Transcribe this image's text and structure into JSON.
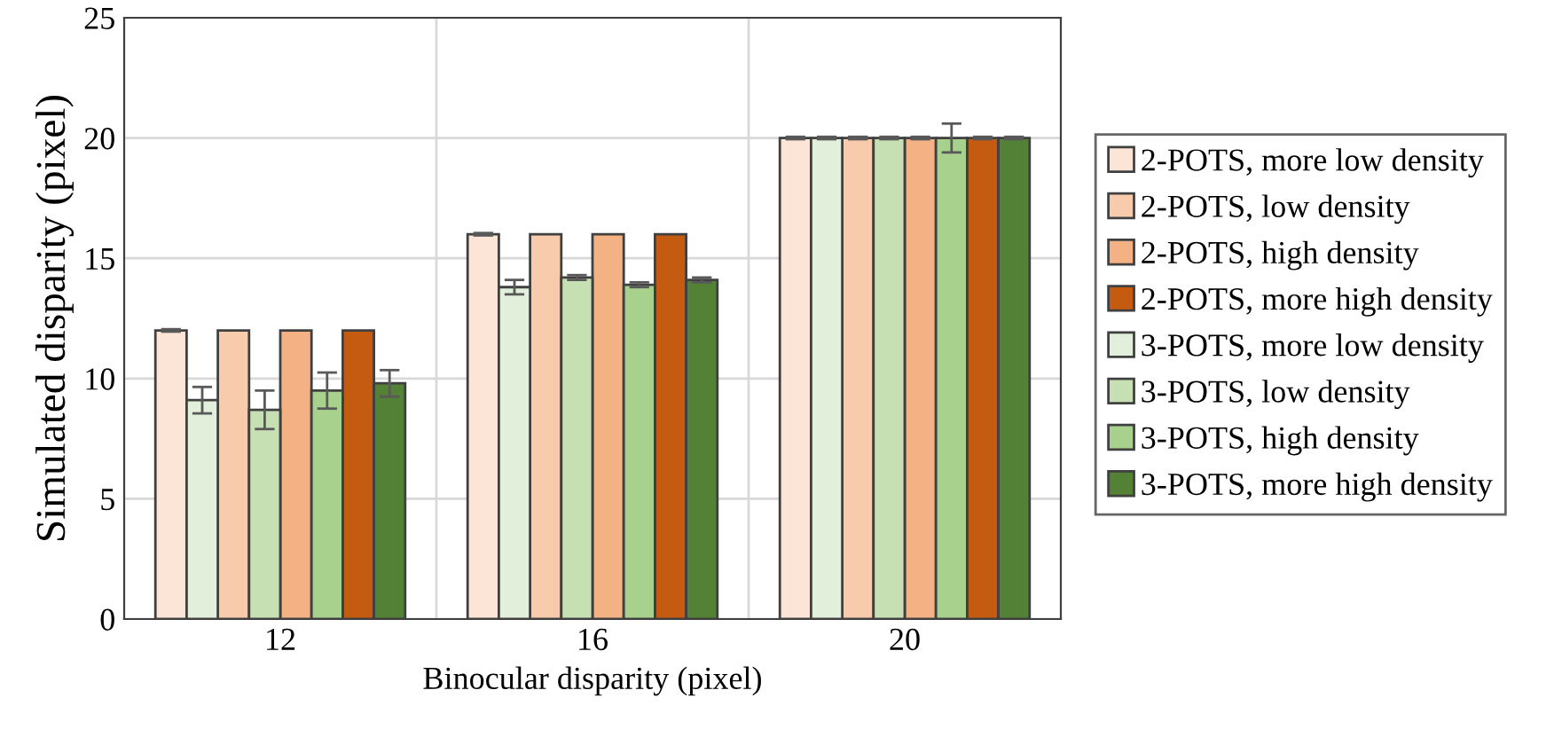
{
  "chart_data": {
    "type": "bar",
    "xlabel": "Binocular disparity (pixel)",
    "ylabel": "Simulated disparity (pixel)",
    "categories": [
      "12",
      "16",
      "20"
    ],
    "series": [
      {
        "name": "2-POTS, more low density",
        "color": "#fce4d6",
        "values": [
          12,
          16,
          20
        ],
        "errors": [
          0.05,
          0.05,
          0.05
        ]
      },
      {
        "name": "2-POTS, low density",
        "color": "#f8cbad",
        "values": [
          12,
          16,
          20
        ],
        "errors": [
          null,
          null,
          0.05
        ]
      },
      {
        "name": "2-POTS, high density",
        "color": "#f4b183",
        "values": [
          12,
          16,
          20
        ],
        "errors": [
          null,
          null,
          0.05
        ]
      },
      {
        "name": "2-POTS, more high density",
        "color": "#c55a11",
        "values": [
          12,
          16,
          20
        ],
        "errors": [
          null,
          null,
          0.05
        ]
      },
      {
        "name": "3-POTS, more low density",
        "color": "#e2efda",
        "values": [
          9.1,
          13.8,
          20
        ],
        "errors": [
          0.55,
          0.3,
          0.05
        ]
      },
      {
        "name": "3-POTS, low density",
        "color": "#c6e0b4",
        "values": [
          8.7,
          14.2,
          20
        ],
        "errors": [
          0.8,
          0.1,
          0.05
        ]
      },
      {
        "name": "3-POTS, high density",
        "color": "#a9d18e",
        "values": [
          9.5,
          13.9,
          20
        ],
        "errors": [
          0.75,
          0.1,
          0.6
        ]
      },
      {
        "name": "3-POTS, more high density",
        "color": "#538135",
        "values": [
          9.8,
          14.1,
          20
        ],
        "errors": [
          0.55,
          0.1,
          0.05
        ]
      }
    ],
    "ylim": [
      0,
      25
    ],
    "yticks": [
      0,
      5,
      10,
      15,
      20,
      25
    ],
    "grid": true,
    "legend": "right"
  }
}
